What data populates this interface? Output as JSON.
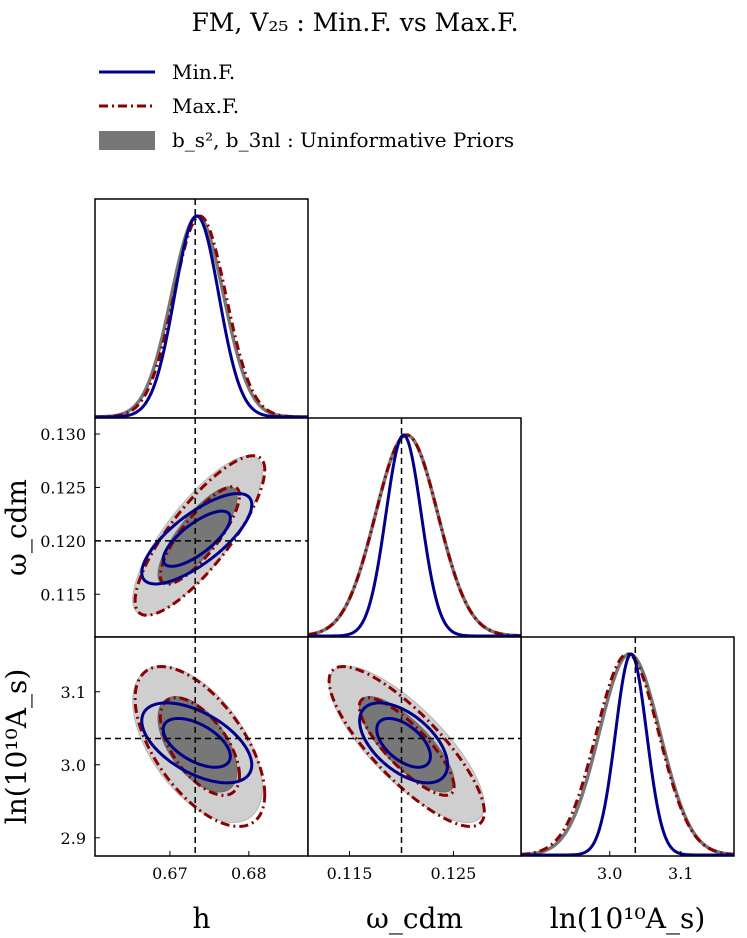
{
  "title": "FM,  V₂₅ : Min.F. vs Max.F.",
  "legend": [
    {
      "label": "Min.F.",
      "style": "solid",
      "color": "#00008b"
    },
    {
      "label": "Max.F.",
      "style": "dashdot",
      "color": "#8b0000"
    },
    {
      "label": "b_s², b_3nl : Uninformative Priors",
      "style": "filled",
      "color": "#777777"
    }
  ],
  "colors": {
    "min_line": "#00008b",
    "max_line": "#8b0000",
    "uninf_line": "#777777",
    "uninf_fill_inner": "#777777",
    "uninf_fill_outer": "#cfcfcf"
  },
  "chart_data": {
    "type": "triangle_corner_plot",
    "title": "FM,  V₂₅ : Min.F. vs Max.F.",
    "parameters": [
      {
        "name": "h",
        "label": "h",
        "range": [
          0.6605,
          0.6875
        ],
        "ticks": [
          0.67,
          0.68
        ],
        "tick_labels": [
          "0.67",
          "0.68"
        ],
        "fiducial": 0.6732
      },
      {
        "name": "omega_cdm",
        "label": "ω_cdm",
        "range": [
          0.111,
          0.1315
        ],
        "ticks": [
          0.115,
          0.12,
          0.125,
          0.13
        ],
        "tick_labels": [
          "0.115",
          "0.120",
          "0.125",
          "0.130"
        ],
        "fiducial": 0.12
      },
      {
        "name": "ln10As",
        "label": "ln(10¹⁰A_s)",
        "range": [
          2.875,
          3.175
        ],
        "ticks": [
          2.9,
          3.0,
          3.1
        ],
        "tick_labels": [
          "2.9",
          "3.0",
          "3.1"
        ],
        "fiducial": 3.036
      }
    ],
    "series": [
      {
        "name": "Min.F.",
        "style": "solid",
        "means": [
          0.6734,
          0.1202,
          3.03
        ],
        "sigmas": [
          0.0028,
          0.0017,
          0.022
        ],
        "correlations": {
          "h_omega": 0.75,
          "h_As": -0.55,
          "omega_As": -0.55
        }
      },
      {
        "name": "Max.F.",
        "style": "dashdot",
        "means": [
          0.6738,
          0.1205,
          3.025
        ],
        "sigmas": [
          0.0033,
          0.003,
          0.044
        ],
        "correlations": {
          "h_omega": 0.82,
          "h_As": -0.6,
          "omega_As": -0.82
        }
      },
      {
        "name": "b_s², b_3nl : Uninformative Priors",
        "style": "filled",
        "means": [
          0.6735,
          0.1205,
          3.028
        ],
        "sigmas": [
          0.0033,
          0.003,
          0.043
        ],
        "correlations": {
          "h_omega": 0.8,
          "h_As": -0.55,
          "omega_As": -0.78
        }
      }
    ]
  }
}
